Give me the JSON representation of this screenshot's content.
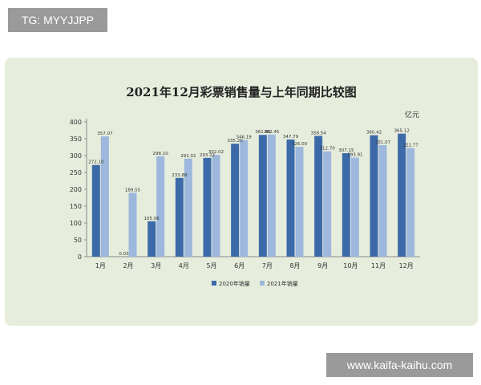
{
  "watermarks": {
    "top": "TG: MYYJJPP",
    "bottom": "www.kaifa-kaihu.com"
  },
  "colors": {
    "card_bg": "#e6eddd",
    "series_2020": "#3c6aa9",
    "series_2021": "#9db8dc",
    "axis": "#8a8a8a",
    "text": "#333333"
  },
  "chart_data": {
    "type": "bar",
    "title": "2021年12月彩票销售量与上年同期比较图",
    "unit_label": "亿元",
    "categories": [
      "1月",
      "2月",
      "3月",
      "4月",
      "5月",
      "6月",
      "7月",
      "8月",
      "9月",
      "10月",
      "11月",
      "12月"
    ],
    "series": [
      {
        "name": "2020年销量",
        "values": [
          272.1,
          0.03,
          105.06,
          233.88,
          293.22,
          335.2,
          361.4,
          347.79,
          358.54,
          307.15,
          360.42,
          365.12
        ]
      },
      {
        "name": "2021年销量",
        "values": [
          357.07,
          189.55,
          298.1,
          291.02,
          302.02,
          346.19,
          362.45,
          326.0,
          312.7,
          293.91,
          331.07,
          322.77
        ]
      }
    ],
    "value_labels": [
      [
        "272.10",
        "0.03",
        "105.06",
        "233.88",
        "293.22",
        "335.20",
        "361.40",
        "347.79",
        "358.54",
        "307.15",
        "360.42",
        "365.12"
      ],
      [
        "357.07",
        "189.55",
        "298.10",
        "291.02",
        "302.02",
        "346.19",
        "362.45",
        "326.00",
        "312.70",
        "293.91",
        "331.07",
        "322.77"
      ]
    ],
    "yticks": [
      "0",
      "50",
      "100",
      "150",
      "200",
      "250",
      "300",
      "350",
      "400"
    ],
    "ylim": [
      0,
      400
    ],
    "grid": false,
    "legend_position": "bottom-center"
  }
}
